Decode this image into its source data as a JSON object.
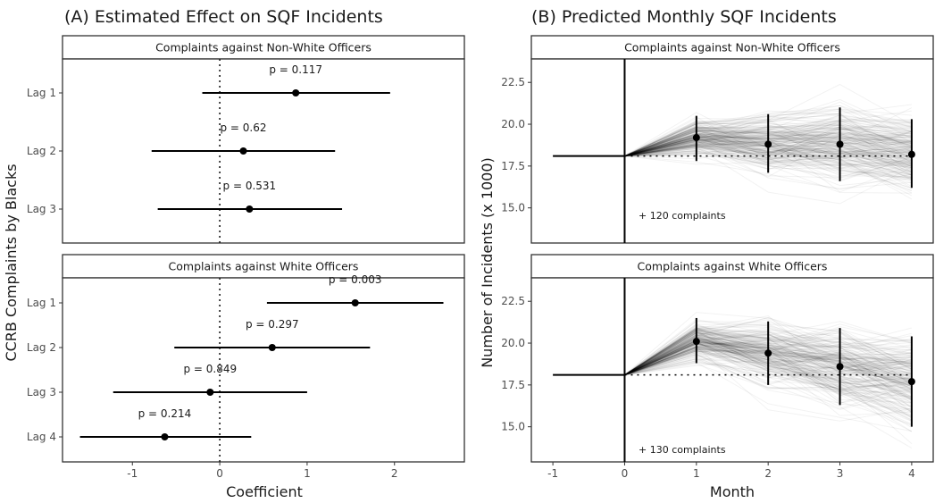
{
  "chart_data": [
    {
      "type": "forest",
      "title": "(A) Estimated Effect on SQF Incidents",
      "xlabel": "Coefficient",
      "ylabel": "CCRB Complaints by Blacks",
      "xlim": [
        -1.8,
        2.8
      ],
      "x_ticks": [
        "-1",
        "0",
        "1",
        "2"
      ],
      "x_tick_values": [
        -1,
        0,
        1,
        2
      ],
      "reference_line": 0,
      "panels": [
        {
          "strip": "Complaints against Non-White Officers",
          "rows": [
            {
              "label": "Lag 1",
              "estimate": 0.87,
              "low": -0.2,
              "high": 1.95,
              "p": "p = 0.117"
            },
            {
              "label": "Lag 2",
              "estimate": 0.27,
              "low": -0.78,
              "high": 1.32,
              "p": "p = 0.62"
            },
            {
              "label": "Lag 3",
              "estimate": 0.34,
              "low": -0.71,
              "high": 1.4,
              "p": "p = 0.531"
            }
          ]
        },
        {
          "strip": "Complaints against White Officers",
          "rows": [
            {
              "label": "Lag 1",
              "estimate": 1.55,
              "low": 0.54,
              "high": 2.56,
              "p": "p = 0.003"
            },
            {
              "label": "Lag 2",
              "estimate": 0.6,
              "low": -0.52,
              "high": 1.72,
              "p": "p = 0.297"
            },
            {
              "label": "Lag 3",
              "estimate": -0.11,
              "low": -1.22,
              "high": 1.0,
              "p": "p = 0.849"
            },
            {
              "label": "Lag 4",
              "estimate": -0.63,
              "low": -1.6,
              "high": 0.36,
              "p": "p = 0.214"
            }
          ]
        }
      ]
    },
    {
      "type": "line",
      "title": "(B) Predicted Monthly SQF Incidents",
      "xlabel": "Month",
      "ylabel": "Number of Incidents (x 1000)",
      "xlim": [
        -1.3,
        4.3
      ],
      "x_ticks": [
        "-1",
        "0",
        "1",
        "2",
        "3",
        "4"
      ],
      "x_tick_values": [
        -1,
        0,
        1,
        2,
        3,
        4
      ],
      "ylim": [
        12.9,
        23.9
      ],
      "y_ticks": [
        "15.0",
        "17.5",
        "20.0",
        "22.5"
      ],
      "y_tick_values": [
        15,
        17.5,
        20,
        22.5
      ],
      "baseline": 18.1,
      "panels": [
        {
          "strip": "Complaints against Non-White Officers",
          "annotation": "+ 120 complaints",
          "points": [
            {
              "month": 1,
              "mean": 19.2,
              "low": 17.8,
              "high": 20.5
            },
            {
              "month": 2,
              "mean": 18.8,
              "low": 17.1,
              "high": 20.6
            },
            {
              "month": 3,
              "mean": 18.8,
              "low": 16.6,
              "high": 21.0
            },
            {
              "month": 4,
              "mean": 18.2,
              "low": 16.2,
              "high": 20.3
            }
          ]
        },
        {
          "strip": "Complaints against White Officers",
          "annotation": "+ 130 complaints",
          "points": [
            {
              "month": 1,
              "mean": 20.1,
              "low": 18.8,
              "high": 21.5
            },
            {
              "month": 2,
              "mean": 19.4,
              "low": 17.5,
              "high": 21.3
            },
            {
              "month": 3,
              "mean": 18.6,
              "low": 16.3,
              "high": 20.9
            },
            {
              "month": 4,
              "mean": 17.7,
              "low": 15.0,
              "high": 20.4
            }
          ]
        }
      ]
    }
  ]
}
